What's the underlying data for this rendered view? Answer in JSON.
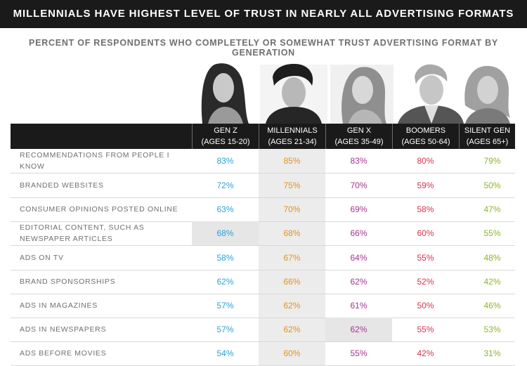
{
  "title": "MILLENNIALS HAVE HIGHEST LEVEL OF TRUST IN NEARLY ALL ADVERTISING FORMATS",
  "subtitle": "PERCENT OF RESPONDENTS WHO COMPLETELY OR SOMEWHAT TRUST ADVERTISING FORMAT BY GENERATION",
  "colors": {
    "genz": "#29a3d6",
    "millennials": "#e8901a",
    "genx": "#a8348f",
    "boomers": "#d8344c",
    "silentgen": "#8ab62c"
  },
  "columns": [
    {
      "name": "GEN Z",
      "ages": "(AGES 15-20)"
    },
    {
      "name": "MILLENNIALS",
      "ages": "(AGES 21-34)"
    },
    {
      "name": "GEN X",
      "ages": "(AGES 35-49)"
    },
    {
      "name": "BOOMERS",
      "ages": "(AGES 50-64)"
    },
    {
      "name": "SILENT GEN",
      "ages": "(AGES 65+)"
    }
  ],
  "chart_data": {
    "type": "table",
    "columns": [
      "GEN Z (AGES 15-20)",
      "MILLENNIALS (AGES 21-34)",
      "GEN X (AGES 35-49)",
      "BOOMERS (AGES 50-64)",
      "SILENT GEN (AGES 65+)"
    ],
    "rows": [
      {
        "label": "RECOMMENDATIONS FROM PEOPLE I KNOW",
        "values": [
          "83%",
          "85%",
          "83%",
          "80%",
          "79%"
        ]
      },
      {
        "label": "BRANDED WEBSITES",
        "values": [
          "72%",
          "75%",
          "70%",
          "59%",
          "50%"
        ]
      },
      {
        "label": "CONSUMER OPINIONS POSTED ONLINE",
        "values": [
          "63%",
          "70%",
          "69%",
          "58%",
          "47%"
        ]
      },
      {
        "label": "EDITORIAL CONTENT, SUCH AS NEWSPAPER ARTICLES",
        "values": [
          "68%",
          "68%",
          "66%",
          "60%",
          "55%"
        ],
        "highlight": [
          0
        ]
      },
      {
        "label": "ADS ON TV",
        "values": [
          "58%",
          "67%",
          "64%",
          "55%",
          "48%"
        ]
      },
      {
        "label": "BRAND SPONSORSHIPS",
        "values": [
          "62%",
          "66%",
          "62%",
          "52%",
          "42%"
        ]
      },
      {
        "label": "ADS IN MAGAZINES",
        "values": [
          "57%",
          "62%",
          "61%",
          "50%",
          "46%"
        ]
      },
      {
        "label": "ADS IN NEWSPAPERS",
        "values": [
          "57%",
          "62%",
          "62%",
          "55%",
          "53%"
        ],
        "highlight": [
          2
        ]
      },
      {
        "label": "ADS BEFORE MOVIES",
        "values": [
          "54%",
          "60%",
          "55%",
          "42%",
          "31%"
        ]
      }
    ]
  }
}
